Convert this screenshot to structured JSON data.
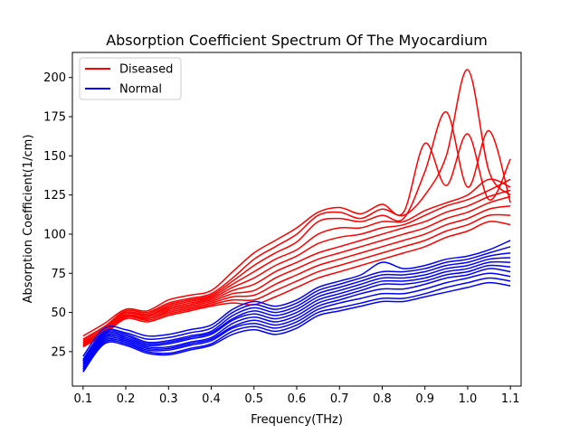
{
  "chart_data": {
    "type": "line",
    "title": "Absorption Coefficient Spectrum Of The Myocardium",
    "xlabel": "Frequency(THz)",
    "ylabel": "Absorption Coefficient(1/cm)",
    "xlim": [
      0.075,
      1.125
    ],
    "ylim": [
      3,
      216
    ],
    "xticks": [
      0.1,
      0.2,
      0.3,
      0.4,
      0.5,
      0.6,
      0.7,
      0.8,
      0.9,
      1.0,
      1.1
    ],
    "xtick_labels": [
      "0.1",
      "0.2",
      "0.3",
      "0.4",
      "0.5",
      "0.6",
      "0.7",
      "0.8",
      "0.9",
      "1.0",
      "1.1"
    ],
    "yticks": [
      25,
      50,
      75,
      100,
      125,
      150,
      175,
      200
    ],
    "ytick_labels": [
      "25",
      "50",
      "75",
      "100",
      "125",
      "150",
      "175",
      "200"
    ],
    "grid": false,
    "legend": {
      "placement": "top-left",
      "entries": [
        {
          "label": "Diseased",
          "color": "#ff0000"
        },
        {
          "label": "Normal",
          "color": "#0000ff"
        }
      ]
    },
    "x": [
      0.1,
      0.15,
      0.2,
      0.25,
      0.3,
      0.35,
      0.4,
      0.45,
      0.5,
      0.55,
      0.6,
      0.65,
      0.7,
      0.75,
      0.8,
      0.85,
      0.9,
      0.95,
      1.0,
      1.05,
      1.1
    ],
    "series": [
      {
        "name": "Diseased",
        "color": "#ff0000",
        "curves": [
          [
            35,
            43,
            52,
            51,
            58,
            61,
            64,
            76,
            88,
            96,
            104,
            114,
            117,
            113,
            119,
            114,
            158,
            131,
            164,
            122,
            148
          ],
          [
            33,
            41,
            51,
            50,
            56,
            59,
            62,
            72,
            84,
            92,
            100,
            112,
            114,
            110,
            116,
            112,
            125,
            150,
            205,
            140,
            125
          ],
          [
            32,
            40,
            50,
            49,
            55,
            58,
            61,
            70,
            80,
            88,
            95,
            108,
            110,
            108,
            112,
            110,
            140,
            178,
            130,
            166,
            120
          ],
          [
            31,
            39,
            50,
            48,
            54,
            57,
            60,
            68,
            76,
            84,
            90,
            100,
            104,
            104,
            108,
            108,
            115,
            120,
            125,
            135,
            130
          ],
          [
            31,
            38,
            49,
            48,
            53,
            56,
            59,
            66,
            72,
            80,
            86,
            94,
            98,
            100,
            104,
            106,
            112,
            118,
            122,
            128,
            135
          ],
          [
            30,
            38,
            48,
            47,
            52,
            55,
            58,
            64,
            68,
            76,
            82,
            88,
            92,
            96,
            100,
            104,
            108,
            114,
            118,
            124,
            128
          ],
          [
            30,
            37,
            48,
            46,
            51,
            54,
            57,
            62,
            64,
            72,
            78,
            84,
            88,
            92,
            96,
            100,
            104,
            110,
            114,
            120,
            124
          ],
          [
            29,
            37,
            47,
            46,
            50,
            53,
            56,
            60,
            61,
            68,
            74,
            80,
            84,
            88,
            92,
            96,
            100,
            106,
            110,
            116,
            118
          ],
          [
            29,
            36,
            47,
            45,
            49,
            52,
            55,
            58,
            58,
            64,
            70,
            76,
            80,
            84,
            88,
            92,
            96,
            102,
            106,
            112,
            112
          ],
          [
            28,
            36,
            46,
            44,
            48,
            51,
            54,
            56,
            55,
            60,
            66,
            72,
            76,
            80,
            84,
            88,
            92,
            98,
            102,
            108,
            106
          ]
        ]
      },
      {
        "name": "Normal",
        "color": "#0000ff",
        "curves": [
          [
            22,
            40,
            39,
            35,
            36,
            39,
            42,
            52,
            57,
            54,
            58,
            66,
            70,
            74,
            82,
            78,
            80,
            84,
            86,
            90,
            96
          ],
          [
            20,
            38,
            37,
            33,
            34,
            37,
            40,
            50,
            55,
            52,
            56,
            64,
            68,
            72,
            76,
            76,
            78,
            82,
            84,
            88,
            92
          ],
          [
            19,
            37,
            36,
            31,
            32,
            35,
            38,
            48,
            53,
            50,
            54,
            62,
            66,
            70,
            74,
            74,
            76,
            80,
            82,
            86,
            88
          ],
          [
            18,
            36,
            35,
            30,
            31,
            34,
            37,
            46,
            51,
            48,
            52,
            60,
            64,
            68,
            72,
            72,
            74,
            78,
            80,
            84,
            85
          ],
          [
            17,
            35,
            34,
            29,
            30,
            33,
            36,
            45,
            49,
            46,
            50,
            58,
            62,
            66,
            70,
            70,
            72,
            76,
            78,
            82,
            82
          ],
          [
            16,
            34,
            33,
            28,
            28,
            31,
            34,
            43,
            47,
            44,
            48,
            56,
            60,
            64,
            68,
            68,
            70,
            74,
            76,
            80,
            79
          ],
          [
            15,
            33,
            32,
            27,
            27,
            30,
            33,
            41,
            45,
            42,
            46,
            54,
            58,
            62,
            65,
            65,
            68,
            72,
            74,
            78,
            76
          ],
          [
            14,
            32,
            31,
            26,
            26,
            29,
            32,
            40,
            43,
            40,
            44,
            52,
            56,
            59,
            62,
            62,
            65,
            69,
            72,
            75,
            73
          ],
          [
            13,
            31,
            30,
            25,
            24,
            27,
            30,
            38,
            41,
            38,
            42,
            50,
            53,
            56,
            59,
            59,
            62,
            66,
            69,
            72,
            70
          ],
          [
            12,
            30,
            29,
            24,
            23,
            26,
            29,
            36,
            39,
            36,
            40,
            48,
            51,
            54,
            57,
            57,
            60,
            63,
            66,
            69,
            67
          ]
        ]
      }
    ]
  }
}
